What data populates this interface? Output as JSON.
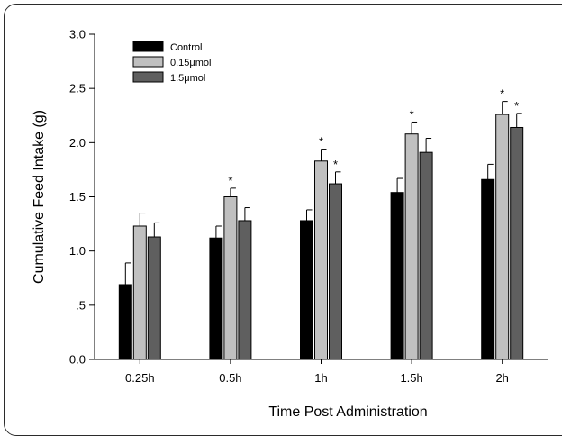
{
  "chart_data": {
    "type": "bar",
    "title": "",
    "xlabel": "Time Post Administration",
    "ylabel": "Cumulative Feed Intake (g)",
    "ylim": [
      0,
      3.0
    ],
    "yticks": [
      {
        "value": 0.0,
        "label": "0.0"
      },
      {
        "value": 0.5,
        "label": ".5"
      },
      {
        "value": 1.0,
        "label": "1.0"
      },
      {
        "value": 1.5,
        "label": "1.5"
      },
      {
        "value": 2.0,
        "label": "2.0"
      },
      {
        "value": 2.5,
        "label": "2.5"
      },
      {
        "value": 3.0,
        "label": "3.0"
      }
    ],
    "categories": [
      "0.25h",
      "0.5h",
      "1h",
      "1.5h",
      "2h"
    ],
    "series": [
      {
        "name": "Control",
        "color": "#000000",
        "values": [
          0.69,
          1.12,
          1.28,
          1.54,
          1.66
        ],
        "errors": [
          0.2,
          0.11,
          0.1,
          0.13,
          0.14
        ],
        "significant": [
          false,
          false,
          false,
          false,
          false
        ]
      },
      {
        "name": "0.15μmol",
        "color": "#c0c0c0",
        "values": [
          1.23,
          1.5,
          1.83,
          2.08,
          2.26
        ],
        "errors": [
          0.12,
          0.08,
          0.11,
          0.11,
          0.12
        ],
        "significant": [
          false,
          true,
          true,
          true,
          true
        ]
      },
      {
        "name": "1.5μmol",
        "color": "#5f5f5f",
        "values": [
          1.13,
          1.28,
          1.62,
          1.91,
          2.14
        ],
        "errors": [
          0.13,
          0.12,
          0.11,
          0.13,
          0.13
        ],
        "significant": [
          false,
          false,
          true,
          false,
          true
        ]
      }
    ],
    "significance_marker": "*",
    "legend_position": "top-left",
    "grid": false
  }
}
